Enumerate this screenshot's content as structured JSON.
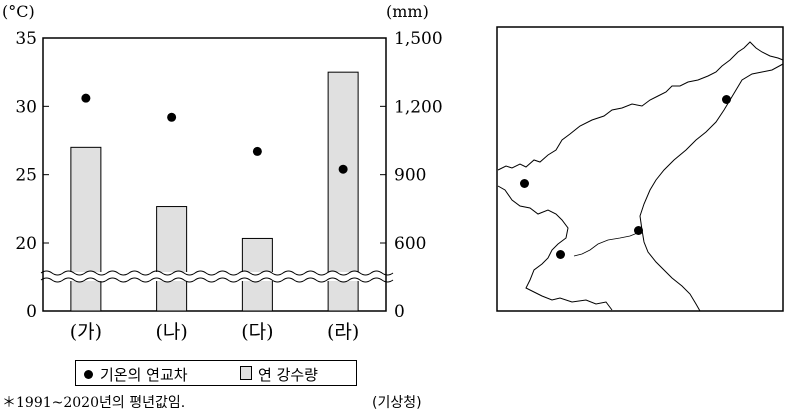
{
  "chart_data": {
    "type": "bar",
    "categories": [
      "(가)",
      "(나)",
      "(다)",
      "(라)"
    ],
    "series": [
      {
        "name": "기온의 연교차",
        "type": "scatter",
        "axis": "left",
        "unit": "°C",
        "values": [
          30.6,
          29.2,
          26.7,
          25.4
        ]
      },
      {
        "name": "연 강수량",
        "type": "bar",
        "axis": "right",
        "unit": "mm",
        "values": [
          1020,
          760,
          620,
          1350
        ]
      }
    ],
    "left_axis": {
      "unit_label": "(°C)",
      "ticks": [
        "35",
        "30",
        "25",
        "20",
        "0"
      ],
      "tick_values": [
        35,
        30,
        25,
        20,
        0
      ],
      "broken_below": 20
    },
    "right_axis": {
      "unit_label": "(mm)",
      "ticks": [
        "1,500",
        "1,200",
        "900",
        "600",
        "0"
      ],
      "tick_values": [
        1500,
        1200,
        900,
        600,
        0
      ],
      "broken_below": 600
    },
    "legend": {
      "placement": "bottom",
      "entries": [
        "기온의 연교차",
        "연 강수량"
      ]
    },
    "grid": false
  },
  "footnote": "＊1991~2020년의 평년값임.",
  "source": "(기상청)",
  "colors": {
    "bar_fill": "#e0e0e0",
    "dot": "#000000"
  }
}
